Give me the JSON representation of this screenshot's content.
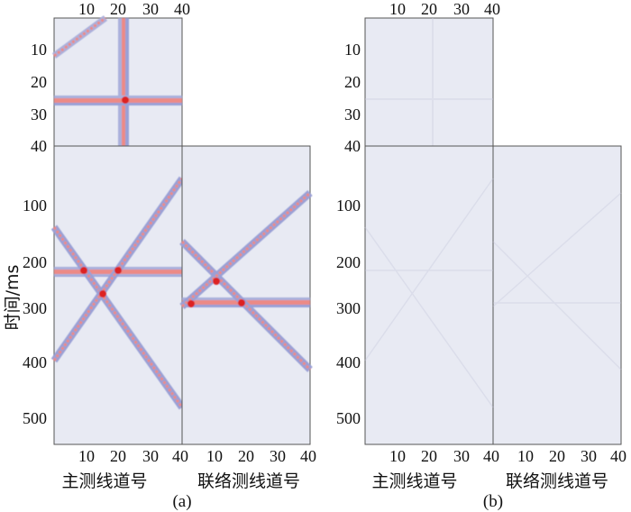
{
  "colors": {
    "background": "#e8eaf3",
    "frame": "#555555",
    "positive": "#e03a32",
    "negative": "#5b63b8"
  },
  "panels": [
    {
      "caption": "(a)",
      "ylabel": "时间/ms",
      "bottom_labels": [
        "主测线道号",
        "联络测线道号"
      ],
      "top_x_ticks": [
        "10",
        "20",
        "30",
        "40"
      ],
      "top_y_ticks": [
        "10",
        "20",
        "30",
        "40"
      ],
      "bottom_x_ticks_1": [
        "10",
        "20",
        "30",
        "40"
      ],
      "bottom_x_ticks_2": [
        "10",
        "20",
        "30",
        "40"
      ],
      "bottom_y_ticks": [
        "100",
        "200",
        "300",
        "400",
        "500"
      ]
    },
    {
      "caption": "(b)",
      "bottom_labels": [
        "主测线道号",
        "联络测线道号"
      ],
      "top_x_ticks": [
        "10",
        "20",
        "30",
        "40"
      ],
      "top_y_ticks": [
        "10",
        "20",
        "30",
        "40"
      ],
      "bottom_x_ticks_1": [
        "10",
        "20",
        "30",
        "40"
      ],
      "bottom_x_ticks_2": [
        "10",
        "20",
        "30",
        "40"
      ],
      "bottom_y_ticks": [
        "100",
        "200",
        "300",
        "400",
        "500"
      ]
    }
  ]
}
